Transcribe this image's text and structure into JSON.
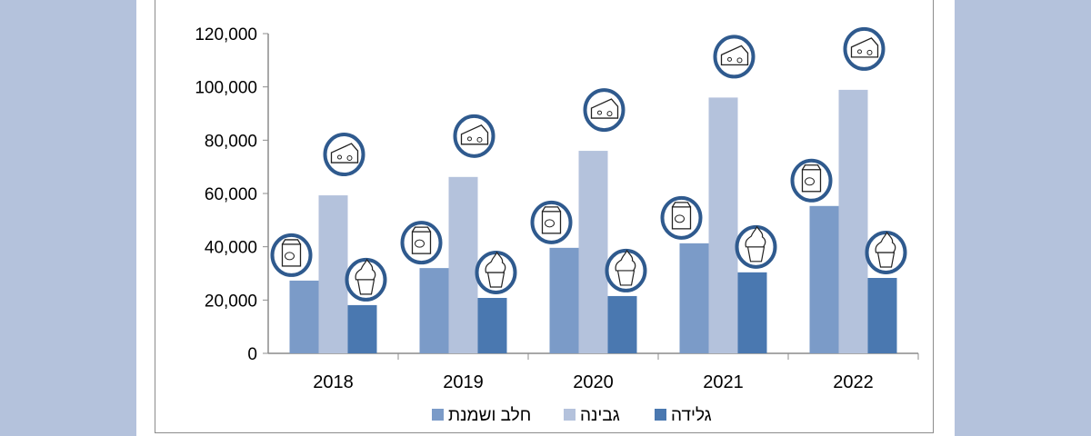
{
  "chart_data": {
    "type": "bar",
    "categories": [
      "2018",
      "2019",
      "2020",
      "2021",
      "2022"
    ],
    "series": [
      {
        "name": "חלב ושמנת",
        "values": [
          27300,
          32000,
          39600,
          41300,
          55300
        ],
        "color": "#7b9bc8",
        "icon": "milk-carton-icon"
      },
      {
        "name": "גבינה",
        "values": [
          59300,
          66200,
          76000,
          96000,
          98900
        ],
        "color": "#b4c2dc",
        "icon": "cheese-icon"
      },
      {
        "name": "גלידה",
        "values": [
          18100,
          20800,
          21500,
          30400,
          28300
        ],
        "color": "#4a78b0",
        "icon": "ice-cream-icon"
      }
    ],
    "yticks": [
      "0",
      "20,000",
      "40,000",
      "60,000",
      "80,000",
      "100,000",
      "120,000"
    ],
    "ylim": [
      0,
      120000
    ],
    "legend": "bottom",
    "icon_ring_color": "#2f5a8e"
  }
}
